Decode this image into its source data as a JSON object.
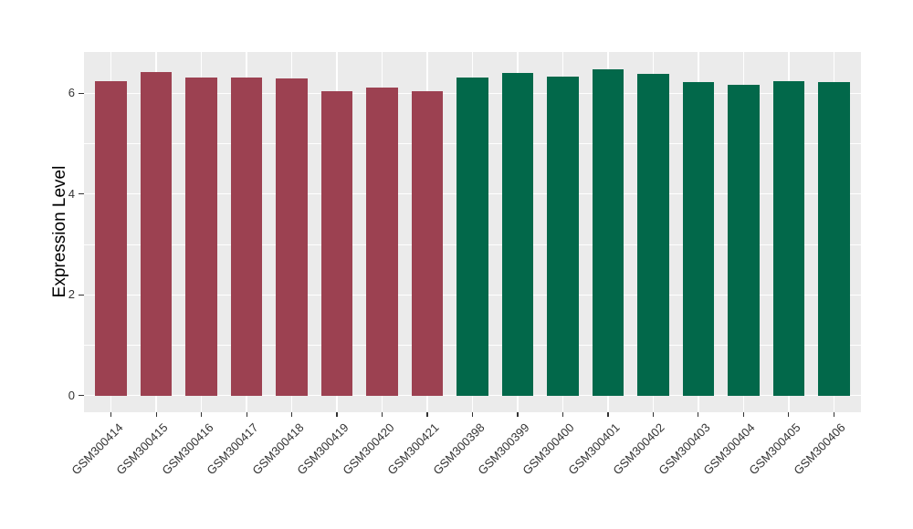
{
  "chart_data": {
    "type": "bar",
    "title": "",
    "ylabel": "Expression Level",
    "xlabel": "",
    "categories": [
      "GSM300414",
      "GSM300415",
      "GSM300416",
      "GSM300417",
      "GSM300418",
      "GSM300419",
      "GSM300420",
      "GSM300421",
      "GSM300398",
      "GSM300399",
      "GSM300400",
      "GSM300401",
      "GSM300402",
      "GSM300403",
      "GSM300404",
      "GSM300405",
      "GSM300406"
    ],
    "values": [
      6.24,
      6.42,
      6.31,
      6.31,
      6.29,
      6.05,
      6.11,
      6.04,
      6.31,
      6.4,
      6.33,
      6.47,
      6.38,
      6.22,
      6.16,
      6.24,
      6.22
    ],
    "bar_colors": [
      "#9C4151",
      "#9C4151",
      "#9C4151",
      "#9C4151",
      "#9C4151",
      "#9C4151",
      "#9C4151",
      "#9C4151",
      "#02684A",
      "#02684A",
      "#02684A",
      "#02684A",
      "#02684A",
      "#02684A",
      "#02684A",
      "#02684A",
      "#02684A"
    ],
    "yticks": [
      0,
      2,
      4,
      6
    ],
    "ytick_labels": [
      "0",
      "2",
      "4",
      "6"
    ],
    "yticks_minor": [
      1,
      3,
      5
    ],
    "ylim": [
      -0.33,
      6.82
    ],
    "grid": true,
    "legend": false,
    "bar_width_frac": 0.7,
    "colors": {
      "group_left": "#9C4151",
      "group_right": "#02684A",
      "panel_background": "#EBEBEB",
      "gridline": "#FFFFFF",
      "axis_text": "#333333",
      "axis_title": "#000000"
    }
  }
}
